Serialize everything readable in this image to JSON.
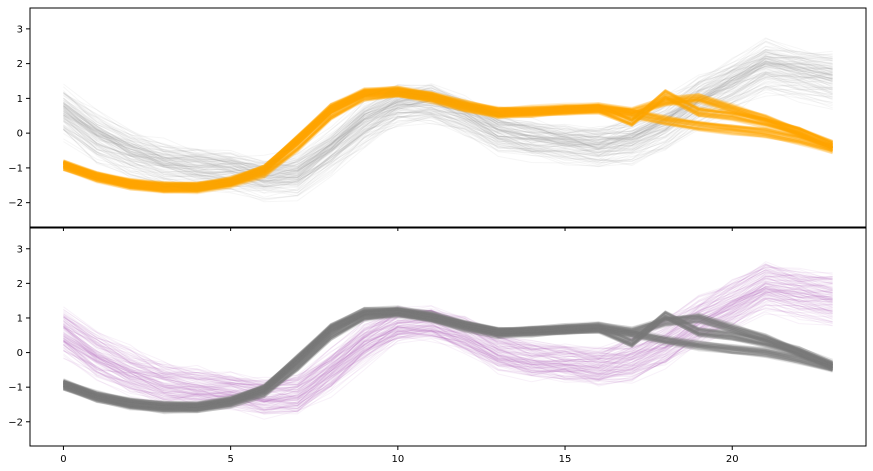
{
  "chart_data": {
    "type": "line",
    "description_free": true,
    "x": [
      0,
      1,
      2,
      3,
      4,
      5,
      6,
      7,
      8,
      9,
      10,
      11,
      12,
      13,
      14,
      15,
      16,
      17,
      18,
      19,
      20,
      21,
      22,
      23
    ],
    "shared_xlim": [
      -1,
      24
    ],
    "xticks": [
      0,
      5,
      10,
      15,
      20
    ],
    "panels": [
      {
        "ylim": [
          -2.7,
          3.6
        ],
        "yticks": [
          -2,
          -1,
          0,
          1,
          2,
          3
        ],
        "highlight_color": "#FFA500",
        "background_color": "#9a9a9a",
        "series": [
          {
            "role": "highlight_group_a",
            "values": [
              -0.9,
              -1.25,
              -1.45,
              -1.55,
              -1.55,
              -1.4,
              -1.05,
              -0.2,
              0.7,
              1.15,
              1.2,
              1.05,
              0.8,
              0.6,
              0.6,
              0.65,
              0.7,
              0.55,
              0.35,
              0.2,
              0.1,
              0.0,
              -0.2,
              -0.45
            ]
          },
          {
            "role": "highlight_group_b",
            "values": [
              -0.9,
              -1.25,
              -1.45,
              -1.55,
              -1.55,
              -1.4,
              -1.05,
              -0.2,
              0.7,
              1.15,
              1.2,
              1.05,
              0.8,
              0.6,
              0.65,
              0.7,
              0.75,
              0.6,
              0.9,
              1.0,
              0.7,
              0.4,
              0.0,
              -0.4
            ]
          },
          {
            "role": "highlight_group_c",
            "values": [
              -0.95,
              -1.3,
              -1.5,
              -1.6,
              -1.6,
              -1.45,
              -1.15,
              -0.4,
              0.5,
              1.05,
              1.15,
              1.0,
              0.75,
              0.55,
              0.6,
              0.65,
              0.7,
              0.3,
              1.1,
              0.6,
              0.5,
              0.3,
              0.05,
              -0.35
            ]
          },
          {
            "role": "background_group_a",
            "values": [
              0.6,
              -0.1,
              -0.6,
              -0.9,
              -1.0,
              -1.1,
              -1.3,
              -1.2,
              -0.5,
              0.3,
              0.8,
              0.85,
              0.5,
              0.0,
              -0.2,
              -0.3,
              -0.4,
              -0.3,
              0.2,
              0.9,
              1.4,
              2.0,
              1.8,
              1.6
            ]
          },
          {
            "role": "background_group_b",
            "values": [
              0.9,
              0.2,
              -0.3,
              -0.7,
              -0.9,
              -1.0,
              -1.2,
              -1.0,
              -0.3,
              0.5,
              0.9,
              0.9,
              0.6,
              0.1,
              -0.1,
              -0.2,
              -0.3,
              0.1,
              0.6,
              1.2,
              1.7,
              2.2,
              2.0,
              1.9
            ]
          },
          {
            "role": "background_group_c",
            "values": [
              0.3,
              -0.4,
              -0.8,
              -1.1,
              -1.2,
              -1.2,
              -1.4,
              -1.4,
              -0.7,
              0.1,
              0.7,
              0.8,
              0.45,
              -0.05,
              -0.25,
              -0.35,
              -0.5,
              -0.4,
              0.0,
              0.6,
              1.1,
              1.6,
              1.4,
              1.2
            ]
          }
        ]
      },
      {
        "ylim": [
          -2.7,
          3.6
        ],
        "yticks": [
          -2,
          -1,
          0,
          1,
          2,
          3
        ],
        "highlight_color": "#7a7a7a",
        "background_color": "#b565b8",
        "series": [
          {
            "role": "highlight_group_a",
            "values": [
              -0.9,
              -1.25,
              -1.45,
              -1.55,
              -1.55,
              -1.4,
              -1.05,
              -0.2,
              0.7,
              1.15,
              1.2,
              1.05,
              0.8,
              0.6,
              0.6,
              0.65,
              0.7,
              0.55,
              0.35,
              0.2,
              0.1,
              0.0,
              -0.2,
              -0.45
            ]
          },
          {
            "role": "highlight_group_b",
            "values": [
              -0.9,
              -1.25,
              -1.45,
              -1.55,
              -1.55,
              -1.4,
              -1.05,
              -0.2,
              0.7,
              1.15,
              1.2,
              1.05,
              0.8,
              0.6,
              0.65,
              0.7,
              0.75,
              0.6,
              0.9,
              1.0,
              0.7,
              0.4,
              0.0,
              -0.4
            ]
          },
          {
            "role": "highlight_group_c",
            "values": [
              -0.95,
              -1.3,
              -1.5,
              -1.6,
              -1.6,
              -1.45,
              -1.15,
              -0.4,
              0.5,
              1.05,
              1.15,
              1.0,
              0.75,
              0.55,
              0.6,
              0.65,
              0.7,
              0.3,
              1.1,
              0.6,
              0.5,
              0.3,
              0.05,
              -0.35
            ]
          },
          {
            "role": "background_group_a",
            "values": [
              0.6,
              -0.1,
              -0.6,
              -0.9,
              -1.0,
              -1.1,
              -1.3,
              -1.2,
              -0.5,
              0.3,
              0.8,
              0.85,
              0.5,
              0.0,
              -0.2,
              -0.3,
              -0.4,
              -0.3,
              0.2,
              0.9,
              1.4,
              2.0,
              1.8,
              1.6
            ]
          },
          {
            "role": "background_group_b",
            "values": [
              0.9,
              0.2,
              -0.3,
              -0.7,
              -0.9,
              -1.0,
              -1.2,
              -1.0,
              -0.3,
              0.5,
              0.9,
              0.9,
              0.6,
              0.1,
              -0.1,
              -0.2,
              -0.3,
              0.1,
              0.6,
              1.2,
              1.7,
              2.2,
              2.0,
              1.9
            ]
          },
          {
            "role": "background_group_c",
            "values": [
              0.3,
              -0.4,
              -0.8,
              -1.1,
              -1.2,
              -1.2,
              -1.4,
              -1.4,
              -0.7,
              0.1,
              0.7,
              0.8,
              0.45,
              -0.05,
              -0.25,
              -0.35,
              -0.5,
              -0.4,
              0.0,
              0.6,
              1.1,
              1.6,
              1.4,
              1.2
            ]
          }
        ]
      }
    ],
    "title": "",
    "xlabel": "",
    "ylabel": "",
    "grid": false,
    "legend": "none"
  }
}
